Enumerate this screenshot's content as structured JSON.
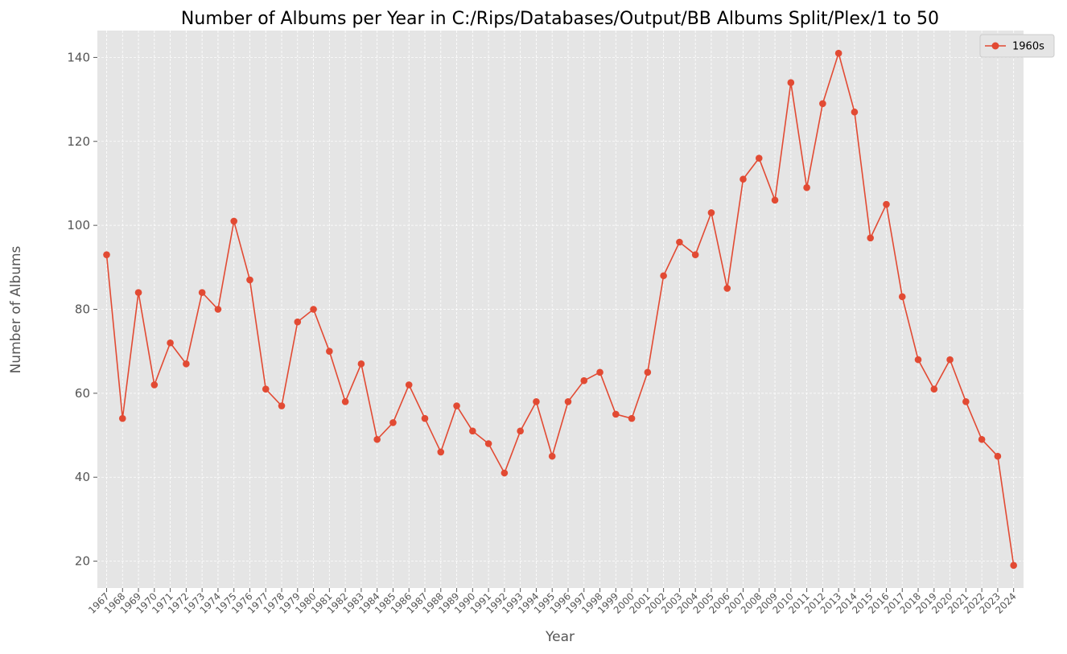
{
  "chart_data": {
    "type": "line",
    "title": "Number of Albums per Year in C:/Rips/Databases/Output/BB Albums Split/Plex/1 to 50",
    "xlabel": "Year",
    "ylabel": "Number of Albums",
    "x": [
      "1967",
      "1968",
      "1969",
      "1970",
      "1971",
      "1972",
      "1973",
      "1974",
      "1975",
      "1976",
      "1977",
      "1978",
      "1979",
      "1980",
      "1981",
      "1982",
      "1983",
      "1984",
      "1985",
      "1986",
      "1987",
      "1988",
      "1989",
      "1990",
      "1991",
      "1992",
      "1993",
      "1994",
      "1995",
      "1996",
      "1997",
      "1998",
      "1999",
      "2000",
      "2001",
      "2002",
      "2003",
      "2004",
      "2005",
      "2006",
      "2007",
      "2008",
      "2009",
      "2010",
      "2011",
      "2012",
      "2013",
      "2014",
      "2015",
      "2016",
      "2017",
      "2018",
      "2019",
      "2020",
      "2021",
      "2022",
      "2023",
      "2024"
    ],
    "series": [
      {
        "name": "1960s",
        "color": "#E24A33",
        "values": [
          93,
          54,
          84,
          62,
          72,
          67,
          84,
          80,
          101,
          87,
          61,
          57,
          77,
          80,
          70,
          58,
          67,
          49,
          53,
          62,
          54,
          46,
          57,
          51,
          48,
          41,
          51,
          58,
          45,
          58,
          63,
          65,
          55,
          54,
          65,
          88,
          96,
          93,
          103,
          85,
          111,
          116,
          106,
          134,
          109,
          129,
          141,
          127,
          97,
          105,
          83,
          68,
          61,
          68,
          58,
          49,
          45,
          19
        ]
      }
    ],
    "yticks": [
      "20",
      "40",
      "60",
      "80",
      "100",
      "120",
      "140"
    ],
    "ylim": [
      13.6,
      146.4
    ],
    "grid": true,
    "legend_position": "top-right",
    "background_color": "#E5E5E5",
    "grid_color": "#FFFFFF"
  }
}
